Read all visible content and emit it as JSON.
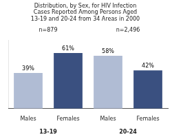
{
  "chart_data": {
    "type": "bar",
    "title": "Distribution, by Sex, for HIV Infection\nCases Reported Among Persons Aged\n13-19 and 20-24 from 34 Areas in 2000",
    "categories": [
      "Males",
      "Females",
      "Males",
      "Females"
    ],
    "values": [
      39,
      61,
      58,
      42
    ],
    "value_labels": [
      "39%",
      "61%",
      "58%",
      "42%"
    ],
    "data_labels": true,
    "colors": [
      "#b0bcd4",
      "#3a5080",
      "#b0bcd4",
      "#3a5080"
    ],
    "group_labels": [
      "13-19",
      "20-24"
    ],
    "annotations": [
      "n=879",
      "n=2,496"
    ],
    "ylim": [
      0,
      75
    ],
    "grid": false,
    "tick_labels": "x"
  }
}
